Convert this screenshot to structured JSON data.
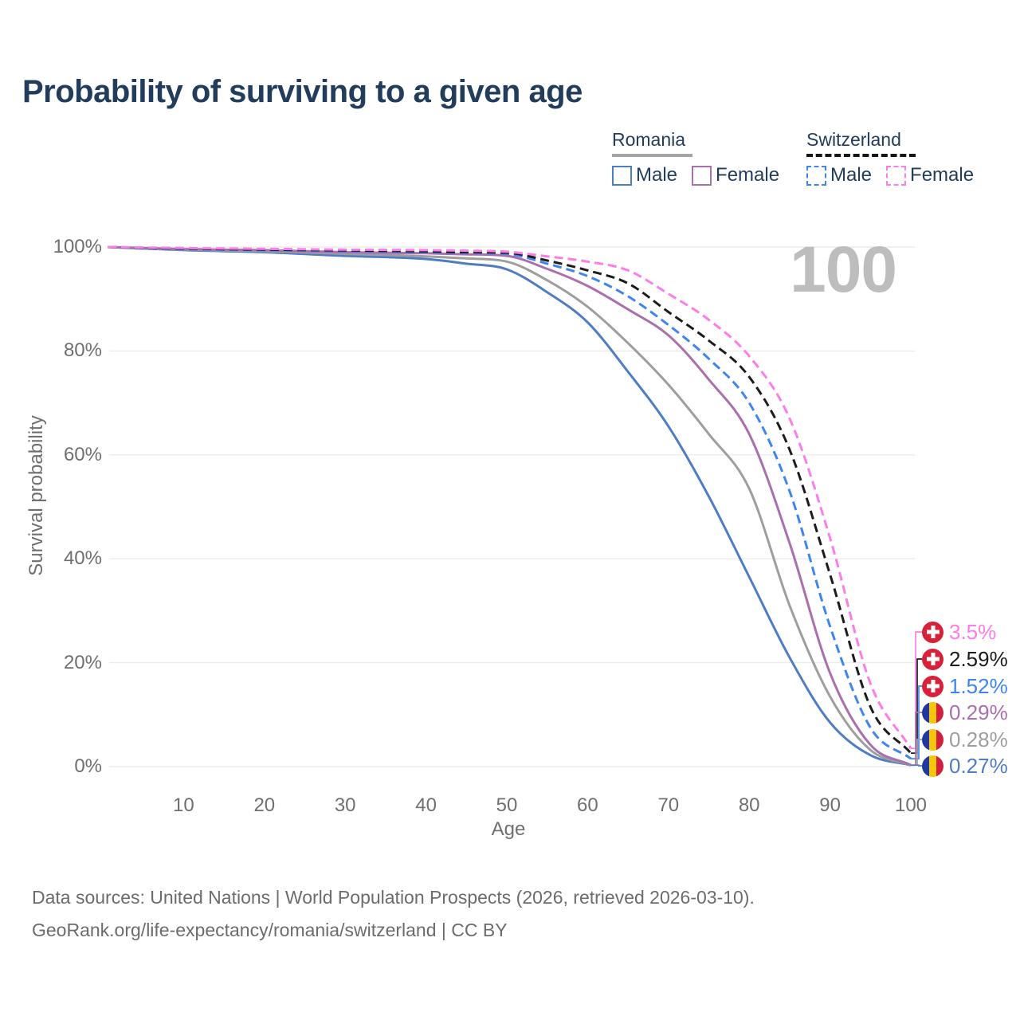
{
  "title": "Probability of surviving to a given age",
  "watermark_age": "100",
  "legend": {
    "romania": {
      "label": "Romania",
      "male": "Male",
      "female": "Female"
    },
    "switzerland": {
      "label": "Switzerland",
      "male": "Male",
      "female": "Female"
    }
  },
  "axes": {
    "y_title": "Survival probability",
    "x_title": "Age",
    "y_ticks": [
      "0%",
      "20%",
      "40%",
      "60%",
      "80%",
      "100%"
    ],
    "y_tick_values": [
      0,
      20,
      40,
      60,
      80,
      100
    ],
    "x_ticks": [
      "10",
      "20",
      "30",
      "40",
      "50",
      "60",
      "70",
      "80",
      "90",
      "100"
    ],
    "x_tick_values": [
      10,
      20,
      30,
      40,
      50,
      60,
      70,
      80,
      90,
      100
    ]
  },
  "colors": {
    "romania_male": "#4e7dc6",
    "romania_female": "#aa70ae",
    "romania_total": "#9e9e9e",
    "switzerland_male": "#3f85f2",
    "switzerland_female": "#fc7de8",
    "switzerland_total": "#1c1c1c",
    "grid": "#ececec",
    "title_text": "#223d5c",
    "axis_text": "#6f6f6f",
    "watermark": "#bdbdbd"
  },
  "chart_data": {
    "type": "line",
    "title": "Probability of surviving to a given age",
    "xlabel": "Age",
    "ylabel": "Survival probability",
    "xlim": [
      0,
      100
    ],
    "ylim": [
      0,
      100
    ],
    "grid": true,
    "legend_position": "top-right",
    "x": [
      0,
      10,
      20,
      30,
      40,
      45,
      50,
      55,
      60,
      65,
      70,
      75,
      80,
      85,
      90,
      95,
      100
    ],
    "series": [
      {
        "name": "Romania Male",
        "color": "#4e7dc6",
        "style": "solid",
        "values": [
          100,
          99.4,
          99.0,
          98.3,
          97.7,
          96.8,
          95.7,
          91.3,
          85.5,
          76.0,
          65.5,
          52.0,
          36.5,
          21.0,
          8.5,
          2.2,
          0.27
        ],
        "end_label": "0.27%"
      },
      {
        "name": "Romania Both sexes",
        "color": "#9e9e9e",
        "style": "solid",
        "values": [
          100,
          99.5,
          99.2,
          98.7,
          98.2,
          97.8,
          97.2,
          93.6,
          88.5,
          81.5,
          73.5,
          64.0,
          53.5,
          31.0,
          13.5,
          3.2,
          0.28
        ],
        "end_label": "0.28%"
      },
      {
        "name": "Romania Female",
        "color": "#aa70ae",
        "style": "solid",
        "values": [
          100,
          99.6,
          99.4,
          99.0,
          98.8,
          98.6,
          98.3,
          95.8,
          92.5,
          88.0,
          83.0,
          74.5,
          64.0,
          43.0,
          18.0,
          4.2,
          0.29
        ],
        "end_label": "0.29%"
      },
      {
        "name": "Switzerland Male",
        "color": "#3f85f2",
        "style": "dashed",
        "values": [
          100,
          99.6,
          99.4,
          99.2,
          99.0,
          98.9,
          98.7,
          96.8,
          94.4,
          90.5,
          85.0,
          78.5,
          70.0,
          53.0,
          27.0,
          7.5,
          1.52
        ],
        "end_label": "1.52%"
      },
      {
        "name": "Switzerland Both sexes",
        "color": "#1c1c1c",
        "style": "dashed",
        "values": [
          100,
          99.7,
          99.5,
          99.35,
          99.15,
          99.0,
          98.9,
          97.4,
          95.5,
          93.0,
          87.5,
          82.0,
          75.0,
          61.0,
          37.0,
          11.5,
          2.59
        ],
        "end_label": "2.59%"
      },
      {
        "name": "Switzerland Female",
        "color": "#fc7de8",
        "style": "dashed",
        "values": [
          100,
          99.8,
          99.65,
          99.5,
          99.4,
          99.3,
          99.1,
          98.2,
          97.2,
          95.5,
          91.0,
          86.0,
          79.0,
          67.0,
          44.0,
          16.0,
          3.5
        ],
        "end_label": "3.5%"
      }
    ],
    "end_labels": [
      {
        "value": "3.5%",
        "numeric": 3.5,
        "flag": "switzerland",
        "color": "#fc7de8"
      },
      {
        "value": "2.59%",
        "numeric": 2.59,
        "flag": "switzerland",
        "color": "#1c1c1c"
      },
      {
        "value": "1.52%",
        "numeric": 1.52,
        "flag": "switzerland",
        "color": "#3f85f2"
      },
      {
        "value": "0.29%",
        "numeric": 0.29,
        "flag": "romania",
        "color": "#aa70ae"
      },
      {
        "value": "0.28%",
        "numeric": 0.28,
        "flag": "romania",
        "color": "#9e9e9e"
      },
      {
        "value": "0.27%",
        "numeric": 0.27,
        "flag": "romania",
        "color": "#4e7dc6"
      }
    ]
  },
  "footer": {
    "line1": "Data sources: United Nations | World Population Prospects (2026, retrieved 2026-03-10).",
    "line2": "GeoRank.org/life-expectancy/romania/switzerland | CC BY"
  }
}
